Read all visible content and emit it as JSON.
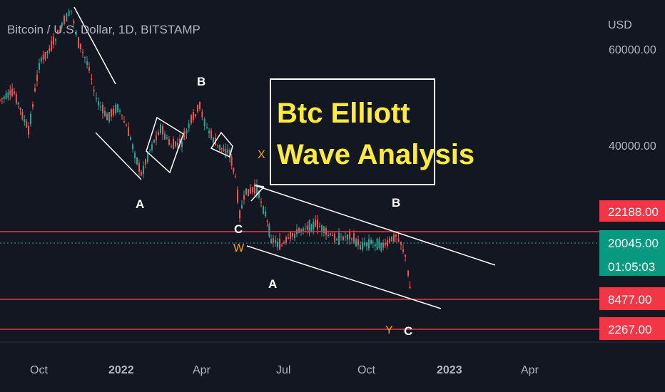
{
  "header": {
    "symbol_title": "Bitcoin / U.S. Dollar, 1D, BITSTAMP",
    "currency": "USD"
  },
  "chart_data": {
    "type": "candlestick",
    "x_ticks": [
      "Oct",
      "2022",
      "Apr",
      "Jul",
      "Oct",
      "2023",
      "Apr"
    ],
    "y_ticks": [
      "60000.00",
      "40000.00"
    ],
    "price_tags": [
      {
        "label": "22188.00",
        "color": "#f23645"
      },
      {
        "label": "20045.00",
        "sublabel": "01:05:03",
        "color": "#089981"
      },
      {
        "label": "8477.00",
        "color": "#f23645"
      },
      {
        "label": "2267.00",
        "color": "#f23645"
      }
    ],
    "horizontal_levels": [
      22188,
      8477,
      2267
    ],
    "current_price": 20045,
    "wave_labels": [
      {
        "text": "A",
        "style": "white"
      },
      {
        "text": "B",
        "style": "white"
      },
      {
        "text": "C",
        "style": "white"
      },
      {
        "text": "W",
        "style": "orange"
      },
      {
        "text": "X",
        "style": "orange"
      },
      {
        "text": "A",
        "style": "white"
      },
      {
        "text": "B",
        "style": "white"
      },
      {
        "text": "Y",
        "style": "orange"
      },
      {
        "text": "C",
        "style": "white"
      }
    ],
    "annotation_box": {
      "line1": "Btc Elliott",
      "line2": "Wave Analysis"
    },
    "colors": {
      "background": "#131722",
      "up": "#26a69a",
      "down": "#ef5350",
      "level_line": "#f23645",
      "current_line": "#26a69a",
      "trendline": "#ffffff",
      "annotation_text": "#ffeb3b"
    }
  }
}
